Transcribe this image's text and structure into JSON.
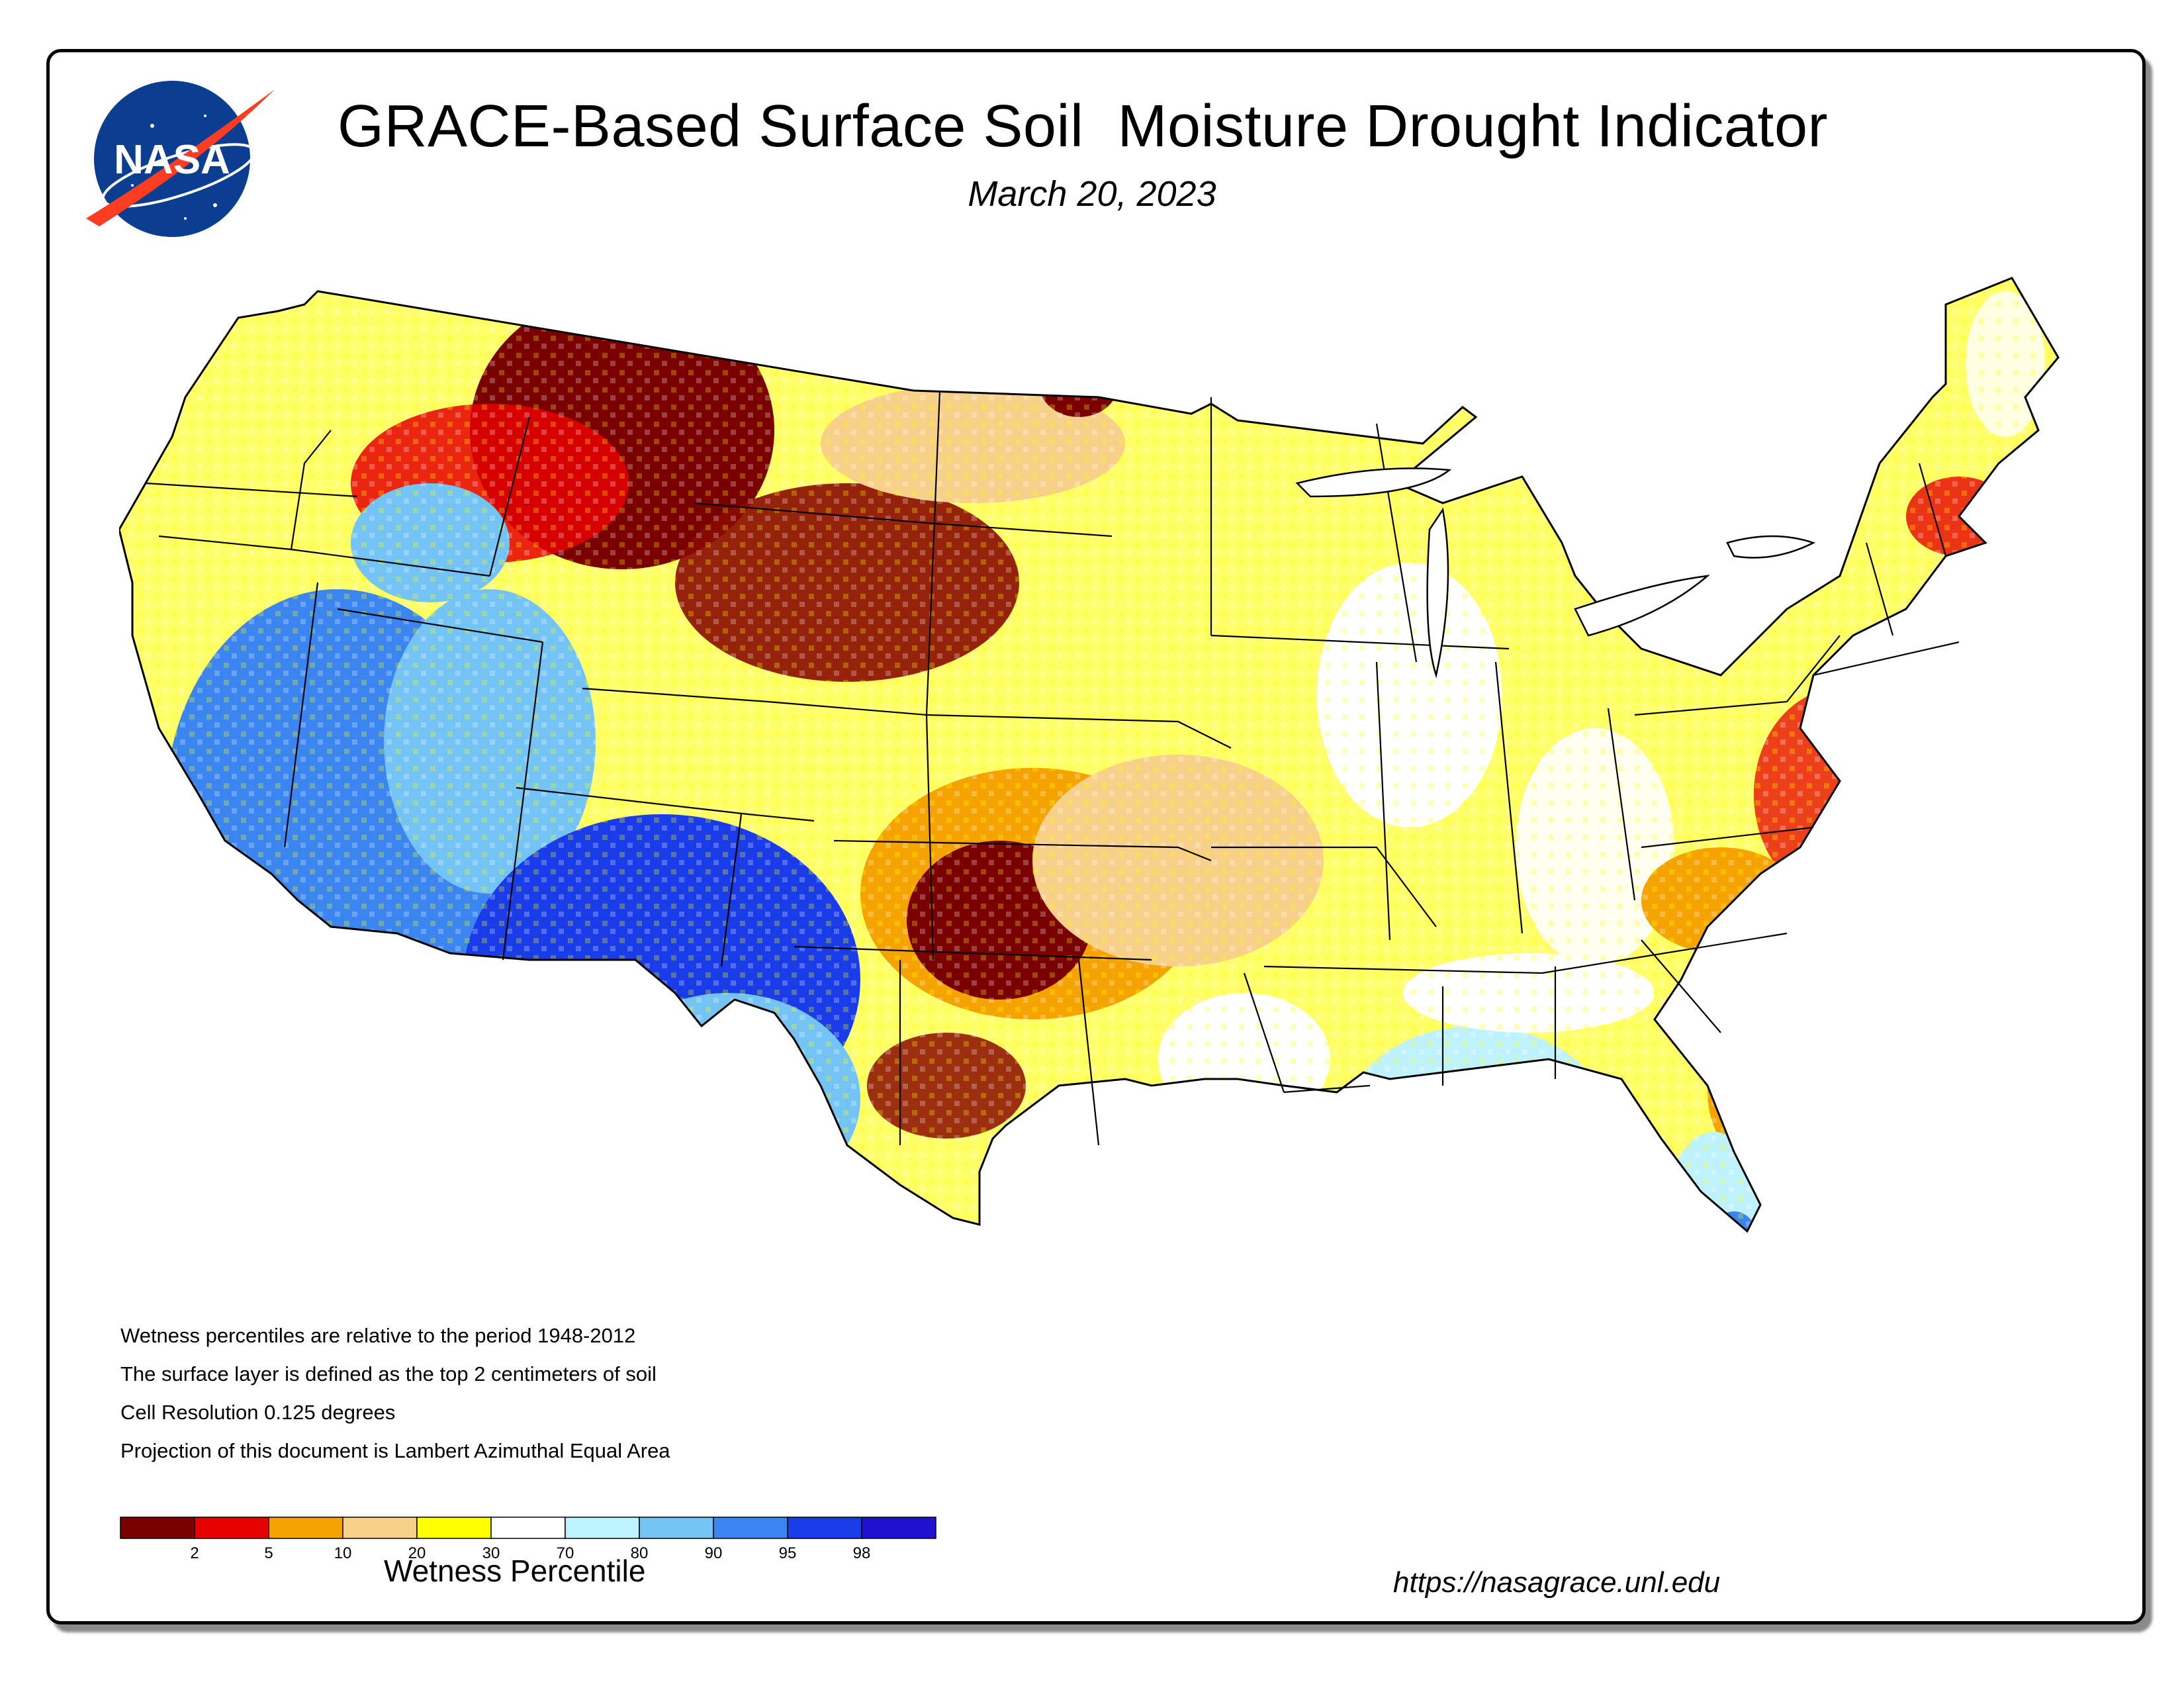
{
  "title": "GRACE-Based Surface Soil  Moisture Drought Indicator",
  "date": "March 20, 2023",
  "logo_text": "NASA",
  "notes": [
    "Wetness percentiles are relative to the period 1948-2012",
    "The surface layer is defined as the top 2 centimeters of soil",
    "Cell Resolution 0.125 degrees",
    "Projection of this document is Lambert Azimuthal Equal Area"
  ],
  "legend": {
    "title": "Wetness Percentile",
    "classes": [
      {
        "color": "#7a0000",
        "tick": "2"
      },
      {
        "color": "#e60000",
        "tick": "5"
      },
      {
        "color": "#f5a300",
        "tick": "10"
      },
      {
        "color": "#f7d08a",
        "tick": "20"
      },
      {
        "color": "#ffff00",
        "tick": "30"
      },
      {
        "color": "#ffffff",
        "tick": "70"
      },
      {
        "color": "#bff2ff",
        "tick": "80"
      },
      {
        "color": "#73c4f5",
        "tick": "90"
      },
      {
        "color": "#3a85f0",
        "tick": "95"
      },
      {
        "color": "#1a3ce8",
        "tick": "98"
      },
      {
        "color": "#2010d0",
        "tick": ""
      }
    ]
  },
  "url": "https://nasagrace.unl.edu",
  "colors": {
    "frame": "#000000",
    "nasa_blue": "#0b3d91",
    "nasa_red": "#fc3d21",
    "state_lines": "#000000"
  }
}
